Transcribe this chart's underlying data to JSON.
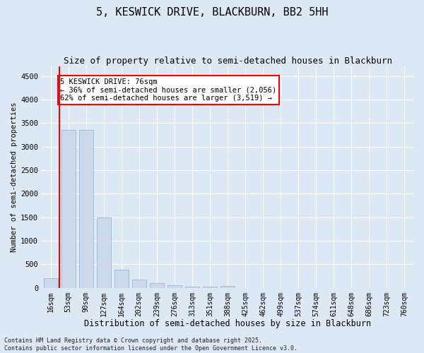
{
  "title1": "5, KESWICK DRIVE, BLACKBURN, BB2 5HH",
  "title2": "Size of property relative to semi-detached houses in Blackburn",
  "xlabel": "Distribution of semi-detached houses by size in Blackburn",
  "ylabel": "Number of semi-detached properties",
  "categories": [
    "16sqm",
    "53sqm",
    "90sqm",
    "127sqm",
    "164sqm",
    "202sqm",
    "239sqm",
    "276sqm",
    "313sqm",
    "351sqm",
    "388sqm",
    "425sqm",
    "462sqm",
    "499sqm",
    "537sqm",
    "574sqm",
    "611sqm",
    "648sqm",
    "686sqm",
    "723sqm",
    "760sqm"
  ],
  "values": [
    200,
    3350,
    3350,
    1500,
    390,
    170,
    100,
    50,
    30,
    20,
    45,
    0,
    0,
    0,
    0,
    0,
    0,
    0,
    0,
    0,
    0
  ],
  "bar_color": "#ccd9ed",
  "bar_edge_color": "#92afd1",
  "highlight_bar_index": 1,
  "highlight_edge_color": "red",
  "vline_x_pos": 0.5,
  "vline_color": "red",
  "annotation_text": "5 KESWICK DRIVE: 76sqm\n← 36% of semi-detached houses are smaller (2,056)\n62% of semi-detached houses are larger (3,519) →",
  "annotation_box_color": "white",
  "annotation_box_edge_color": "red",
  "ylim": [
    0,
    4700
  ],
  "yticks": [
    0,
    500,
    1000,
    1500,
    2000,
    2500,
    3000,
    3500,
    4000,
    4500
  ],
  "background_color": "#dde8f5",
  "grid_color": "white",
  "footnote": "Contains HM Land Registry data © Crown copyright and database right 2025.\nContains public sector information licensed under the Open Government Licence v3.0."
}
